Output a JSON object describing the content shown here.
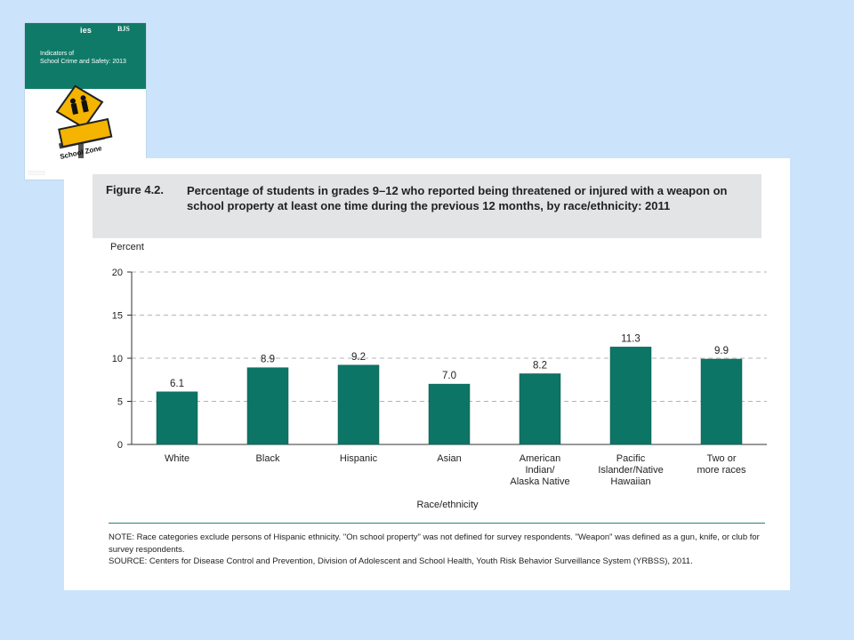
{
  "cover": {
    "logo_left": "ies",
    "logo_right": "BJS",
    "title_line1": "Indicators of",
    "title_line2": "School Crime and Safety: 2013",
    "sign_text": "School Zone",
    "band_color": "#0f7a68",
    "sign_color": "#f5b400"
  },
  "figure": {
    "number": "Figure 4.2.",
    "title": "Percentage of students in grades 9–12 who reported being threatened or injured with a weapon on school property at least one time during the previous 12 months, by race/ethnicity: 2011",
    "note": "NOTE: Race categories exclude persons of Hispanic ethnicity. \"On school property\" was not defined for survey respondents. \"Weapon\" was defined as a gun, knife, or club for survey respondents.",
    "source": "SOURCE: Centers for Disease Control and Prevention, Division of Adolescent and School Health, Youth Risk Behavior Surveillance System (YRBSS), 2011."
  },
  "chart_data": {
    "type": "bar",
    "title": "Percentage of students in grades 9–12 who reported being threatened or injured with a weapon on school property at least one time during the previous 12 months, by race/ethnicity: 2011",
    "xlabel": "Race/ethnicity",
    "ylabel": "Percent",
    "ylim": [
      0,
      20
    ],
    "yticks": [
      0,
      5,
      10,
      15,
      20
    ],
    "grid": true,
    "bar_color": "#0c7565",
    "categories": [
      "White",
      "Black",
      "Hispanic",
      "Asian",
      "American\nIndian/\nAlaska Native",
      "Pacific\nIslander/Native\nHawaiian",
      "Two or\nmore races"
    ],
    "values": [
      6.1,
      8.9,
      9.2,
      7.0,
      8.2,
      11.3,
      9.9
    ],
    "value_labels": [
      "6.1",
      "8.9",
      "9.2",
      "7.0",
      "8.2",
      "11.3",
      "9.9"
    ]
  }
}
